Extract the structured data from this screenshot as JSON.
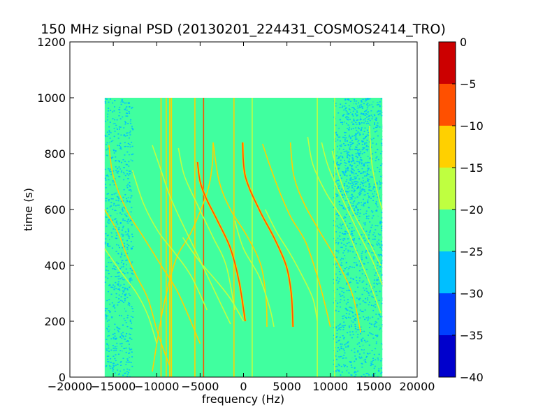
{
  "chart_data": {
    "type": "heatmap",
    "title": "150 MHz signal PSD (20130201_224431_COSMOS2414_TRO)",
    "xlabel": "frequency (Hz)",
    "ylabel": "time (s)",
    "xlim": [
      -20000,
      20000
    ],
    "ylim": [
      0,
      1200
    ],
    "xticks": [
      -20000,
      -15000,
      -10000,
      -5000,
      0,
      5000,
      10000,
      15000,
      20000
    ],
    "xtick_labels": [
      "−20000",
      "−15000",
      "−10000",
      "−5000",
      "0",
      "5000",
      "10000",
      "15000",
      "20000"
    ],
    "yticks": [
      0,
      200,
      400,
      600,
      800,
      1000,
      1200
    ],
    "ytick_labels": [
      "0",
      "200",
      "400",
      "600",
      "800",
      "1000",
      "1200"
    ],
    "data_extent": {
      "x": [
        -16000,
        16000
      ],
      "y": [
        0,
        1000
      ]
    },
    "background_level": -22.5,
    "colorbar": {
      "levels": [
        -40,
        -35,
        -30,
        -25,
        -20,
        -15,
        -10,
        -5,
        0
      ],
      "tick_labels": [
        "−40",
        "−35",
        "−30",
        "−25",
        "−20",
        "−15",
        "−10",
        "−5",
        "0"
      ],
      "colors": [
        "#0000cc",
        "#0040ff",
        "#00bfff",
        "#40ff9f",
        "#bfff40",
        "#ffd000",
        "#ff5000",
        "#cc0000"
      ]
    },
    "vertical_lines": [
      {
        "x": -9500,
        "level": -12
      },
      {
        "x": -8900,
        "level": -12
      },
      {
        "x": -8500,
        "level": -12
      },
      {
        "x": -8300,
        "level": -12
      },
      {
        "x": -5600,
        "level": -12
      },
      {
        "x": -4600,
        "level": -8
      },
      {
        "x": -1100,
        "level": -12
      },
      {
        "x": 8500,
        "level": -17
      },
      {
        "x": 10500,
        "level": -17
      },
      {
        "x": 1000,
        "level": -17
      }
    ],
    "series": [
      {
        "level": -12,
        "points": [
          [
            -3500,
            840
          ],
          [
            -3600,
            760
          ],
          [
            -4200,
            660
          ],
          [
            -6000,
            520
          ],
          [
            -7800,
            420
          ],
          [
            -9300,
            240
          ],
          [
            -10500,
            20
          ]
        ]
      },
      {
        "level": -7,
        "points": [
          [
            -5300,
            770
          ],
          [
            -5000,
            700
          ],
          [
            -4300,
            640
          ],
          [
            -3000,
            560
          ],
          [
            -1500,
            460
          ],
          [
            -500,
            340
          ],
          [
            200,
            200
          ]
        ]
      },
      {
        "level": -12,
        "points": [
          [
            -3500,
            840
          ],
          [
            -2800,
            700
          ],
          [
            -1500,
            600
          ],
          [
            500,
            500
          ],
          [
            2000,
            400
          ],
          [
            2600,
            280
          ],
          [
            2700,
            180
          ]
        ]
      },
      {
        "level": -7,
        "points": [
          [
            -100,
            840
          ],
          [
            200,
            720
          ],
          [
            1800,
            600
          ],
          [
            3500,
            500
          ],
          [
            4900,
            400
          ],
          [
            5500,
            300
          ],
          [
            5700,
            180
          ]
        ]
      },
      {
        "level": -12,
        "points": [
          [
            2200,
            835
          ],
          [
            3000,
            760
          ],
          [
            4200,
            660
          ],
          [
            5500,
            570
          ],
          [
            7200,
            480
          ],
          [
            8800,
            330
          ],
          [
            10000,
            180
          ]
        ]
      },
      {
        "level": -12,
        "points": [
          [
            5400,
            840
          ],
          [
            5800,
            720
          ],
          [
            7000,
            620
          ],
          [
            8800,
            520
          ],
          [
            10500,
            430
          ],
          [
            12500,
            300
          ],
          [
            13500,
            160
          ]
        ]
      },
      {
        "level": -12,
        "points": [
          [
            -16000,
            600
          ],
          [
            -14500,
            520
          ],
          [
            -13500,
            440
          ],
          [
            -12300,
            360
          ],
          [
            -11000,
            280
          ],
          [
            -9800,
            150
          ],
          [
            -8500,
            40
          ]
        ]
      },
      {
        "level": -12,
        "points": [
          [
            -15500,
            830
          ],
          [
            -15000,
            720
          ],
          [
            -13500,
            600
          ],
          [
            -11500,
            500
          ],
          [
            -9500,
            400
          ],
          [
            -7500,
            300
          ],
          [
            -5000,
            120
          ]
        ]
      },
      {
        "level": -17,
        "points": [
          [
            -16000,
            460
          ],
          [
            -14200,
            380
          ],
          [
            -12300,
            300
          ],
          [
            -11000,
            220
          ],
          [
            -10000,
            120
          ]
        ]
      },
      {
        "level": -17,
        "points": [
          [
            -12800,
            740
          ],
          [
            -11500,
            620
          ],
          [
            -9800,
            520
          ],
          [
            -7800,
            440
          ],
          [
            -6000,
            360
          ],
          [
            -4200,
            240
          ]
        ]
      },
      {
        "level": -17,
        "points": [
          [
            -10500,
            830
          ],
          [
            -9500,
            740
          ],
          [
            -8500,
            650
          ],
          [
            -7200,
            560
          ],
          [
            -5500,
            450
          ],
          [
            -3200,
            300
          ],
          [
            -1500,
            190
          ]
        ]
      },
      {
        "level": -17,
        "points": [
          [
            -7500,
            820
          ],
          [
            -6800,
            720
          ],
          [
            -5200,
            610
          ],
          [
            -3500,
            500
          ],
          [
            -2000,
            400
          ],
          [
            -1000,
            240
          ]
        ]
      },
      {
        "level": -17,
        "points": [
          [
            7400,
            860
          ],
          [
            8000,
            760
          ],
          [
            9500,
            660
          ],
          [
            11500,
            560
          ],
          [
            13000,
            450
          ],
          [
            14500,
            340
          ],
          [
            15800,
            230
          ]
        ]
      },
      {
        "level": -17,
        "points": [
          [
            9000,
            840
          ],
          [
            9800,
            750
          ],
          [
            11500,
            630
          ],
          [
            13200,
            520
          ],
          [
            14800,
            420
          ],
          [
            16000,
            330
          ]
        ]
      },
      {
        "level": -17,
        "points": [
          [
            10200,
            810
          ],
          [
            11000,
            720
          ],
          [
            12500,
            600
          ],
          [
            14200,
            500
          ],
          [
            15800,
            400
          ]
        ]
      },
      {
        "level": -17,
        "points": [
          [
            14500,
            900
          ],
          [
            14800,
            760
          ],
          [
            15600,
            640
          ],
          [
            16000,
            600
          ]
        ]
      },
      {
        "level": -17,
        "points": [
          [
            -1000,
            560
          ],
          [
            0,
            460
          ],
          [
            1800,
            360
          ],
          [
            3000,
            250
          ],
          [
            3500,
            180
          ]
        ]
      },
      {
        "level": -17,
        "points": [
          [
            -7000,
            500
          ],
          [
            -5200,
            420
          ],
          [
            -3000,
            340
          ],
          [
            -1500,
            280
          ],
          [
            0,
            200
          ]
        ]
      },
      {
        "level": -17,
        "points": [
          [
            2500,
            600
          ],
          [
            3800,
            520
          ],
          [
            5400,
            440
          ],
          [
            6800,
            360
          ],
          [
            8000,
            280
          ],
          [
            8500,
            200
          ]
        ]
      }
    ],
    "low_regions": [
      {
        "x": [
          -16000,
          -12800
        ],
        "level": -27
      },
      {
        "x": [
          10300,
          16000
        ],
        "level": -28
      },
      {
        "x": [
          11500,
          14500
        ],
        "y": [
          600,
          1000
        ],
        "level": -29
      }
    ]
  }
}
